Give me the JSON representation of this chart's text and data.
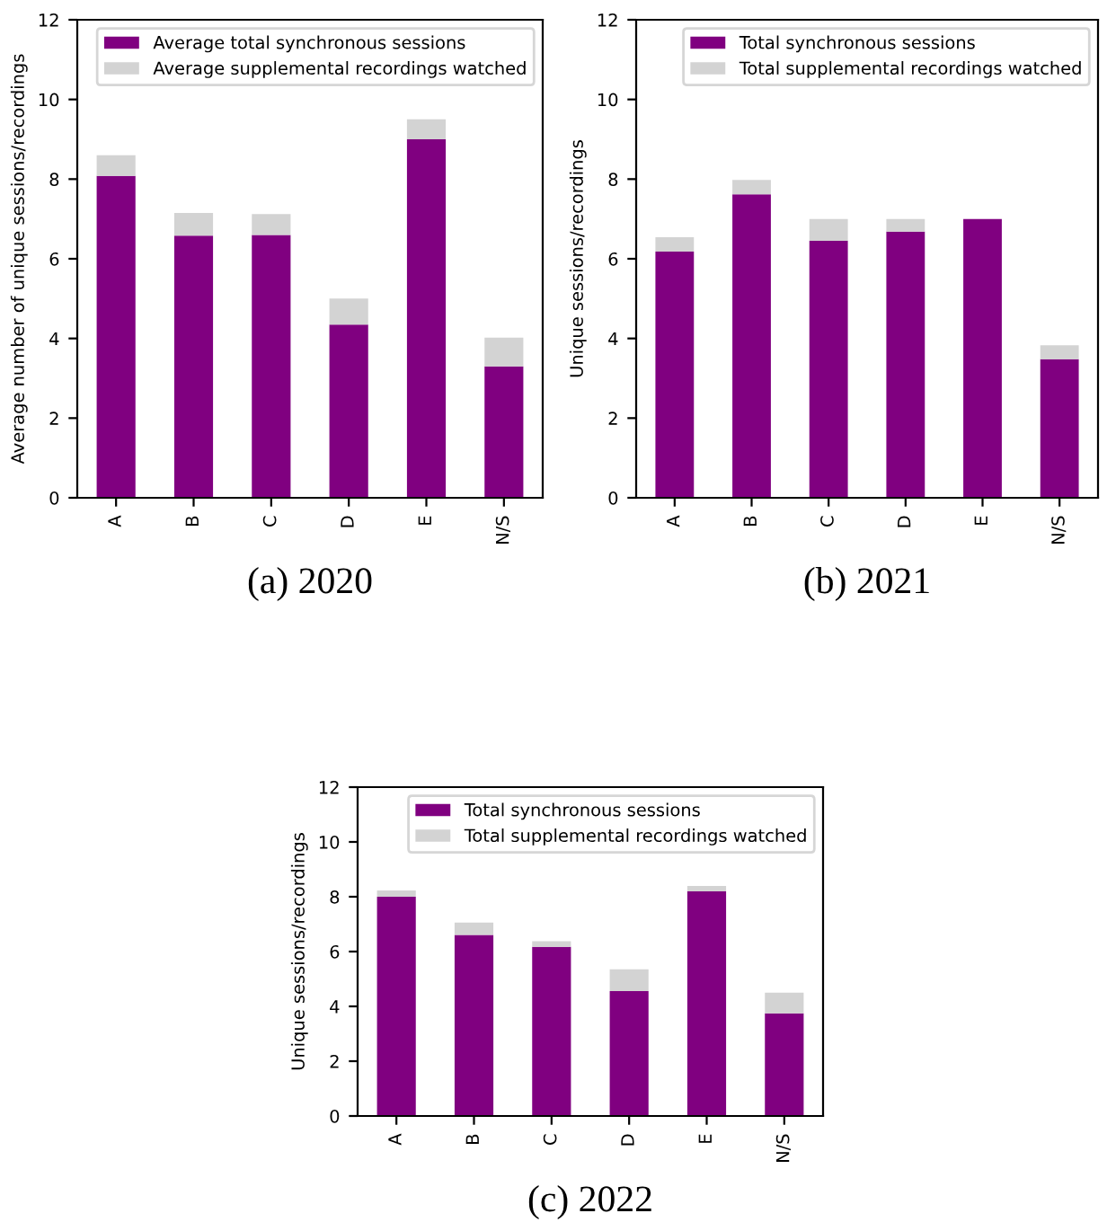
{
  "chart_data": [
    {
      "type": "bar",
      "stacked": true,
      "ylabel": "Average number of unique sessions/recordings",
      "categories": [
        "A",
        "B",
        "C",
        "D",
        "E",
        "N/S"
      ],
      "series": [
        {
          "name": "Average total synchronous sessions",
          "color": "#800080",
          "values": [
            8.08,
            6.58,
            6.6,
            4.35,
            9.0,
            3.3
          ]
        },
        {
          "name": "Average supplemental recordings watched",
          "color": "#d3d3d3",
          "values": [
            0.52,
            0.57,
            0.52,
            0.65,
            0.5,
            0.72
          ]
        }
      ],
      "ylim": [
        0,
        12
      ],
      "yticks": [
        0,
        2,
        4,
        6,
        8,
        10,
        12
      ],
      "legend": "top right",
      "grid": false,
      "annotations": [
        "(a) 2020"
      ]
    },
    {
      "type": "bar",
      "stacked": true,
      "ylabel": "Unique sessions/recordings",
      "categories": [
        "A",
        "B",
        "C",
        "D",
        "E",
        "N/S"
      ],
      "series": [
        {
          "name": "Total synchronous sessions",
          "color": "#800080",
          "values": [
            6.18,
            7.62,
            6.45,
            6.68,
            7.0,
            3.48
          ]
        },
        {
          "name": "Total supplemental recordings watched",
          "color": "#d3d3d3",
          "values": [
            0.36,
            0.36,
            0.55,
            0.32,
            null,
            0.35
          ]
        }
      ],
      "ylim": [
        0,
        12
      ],
      "yticks": [
        0,
        2,
        4,
        6,
        8,
        10,
        12
      ],
      "legend": "top right",
      "grid": false,
      "annotations": [
        "(b) 2021"
      ]
    },
    {
      "type": "bar",
      "stacked": true,
      "ylabel": "Unique sessions/recordings",
      "categories": [
        "A",
        "B",
        "C",
        "D",
        "E",
        "N/S"
      ],
      "series": [
        {
          "name": "Total synchronous sessions",
          "color": "#800080",
          "values": [
            8.0,
            6.61,
            6.17,
            4.56,
            8.2,
            3.75
          ]
        },
        {
          "name": "Total supplemental recordings watched",
          "color": "#d3d3d3",
          "values": [
            0.23,
            0.45,
            0.21,
            0.79,
            0.19,
            0.75
          ]
        }
      ],
      "ylim": [
        0,
        12
      ],
      "yticks": [
        0,
        2,
        4,
        6,
        8,
        10,
        12
      ],
      "legend": "top right",
      "grid": false,
      "annotations": [
        "(c) 2022"
      ]
    }
  ]
}
